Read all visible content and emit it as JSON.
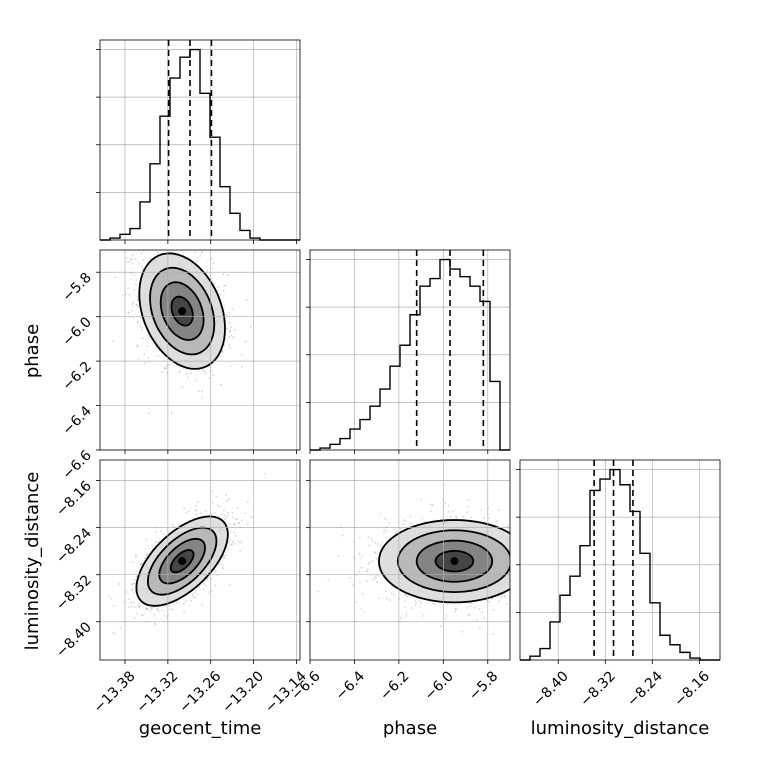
{
  "chart_data": {
    "type": "corner",
    "parameters": [
      "geocent_time",
      "phase",
      "luminosity_distance"
    ],
    "labels": {
      "geocent_time": "geocent_time",
      "phase": "phase",
      "luminosity_distance": "luminosity_distance"
    },
    "axis_ranges": {
      "geocent_time": [
        -13.415,
        -13.135
      ],
      "phase": [
        -6.6,
        -5.7
      ],
      "luminosity_distance": [
        -8.465,
        -8.125
      ]
    },
    "ticks": {
      "geocent_time": [
        -13.38,
        -13.32,
        -13.26,
        -13.2,
        -13.14
      ],
      "phase": [
        -6.6,
        -6.4,
        -6.2,
        -6.0,
        -5.8
      ],
      "luminosity_distance": [
        -8.4,
        -8.32,
        -8.24,
        -8.16
      ]
    },
    "tick_labels": {
      "geocent_time": [
        "−13.38",
        "−13.32",
        "−13.26",
        "−13.20",
        "−13.14"
      ],
      "phase": [
        "−6.6",
        "−6.4",
        "−6.2",
        "−6.0",
        "−5.8"
      ],
      "luminosity_distance": [
        "−8.40",
        "−8.32",
        "−8.24",
        "−8.16"
      ]
    },
    "quantiles": {
      "geocent_time": [
        -13.319,
        -13.289,
        -13.259
      ],
      "phase": [
        -6.12,
        -5.97,
        -5.82
      ],
      "luminosity_distance": [
        -8.339,
        -8.306,
        -8.273
      ]
    },
    "histograms": {
      "geocent_time": {
        "edges": [
          -13.415,
          -13.401,
          -13.387,
          -13.373,
          -13.359,
          -13.345,
          -13.331,
          -13.317,
          -13.303,
          -13.289,
          -13.275,
          -13.261,
          -13.247,
          -13.233,
          -13.219,
          -13.205,
          -13.191,
          -13.177,
          -13.163,
          -13.149,
          -13.135
        ],
        "counts": [
          0.0,
          0.01,
          0.03,
          0.06,
          0.2,
          0.4,
          0.65,
          0.85,
          0.96,
          1.0,
          0.77,
          0.54,
          0.28,
          0.14,
          0.05,
          0.01,
          0.0,
          0.0,
          0.0,
          0.0
        ]
      },
      "phase": {
        "edges": [
          -6.6,
          -6.555,
          -6.51,
          -6.465,
          -6.42,
          -6.375,
          -6.33,
          -6.285,
          -6.24,
          -6.195,
          -6.15,
          -6.105,
          -6.06,
          -6.015,
          -5.97,
          -5.925,
          -5.88,
          -5.835,
          -5.79,
          -5.745,
          -5.7
        ],
        "counts": [
          0.0,
          0.01,
          0.03,
          0.06,
          0.11,
          0.16,
          0.23,
          0.32,
          0.44,
          0.55,
          0.71,
          0.86,
          0.9,
          1.0,
          0.95,
          0.91,
          0.86,
          0.78,
          0.36,
          0.0
        ]
      },
      "luminosity_distance": {
        "edges": [
          -8.465,
          -8.448,
          -8.431,
          -8.414,
          -8.397,
          -8.38,
          -8.363,
          -8.346,
          -8.329,
          -8.312,
          -8.295,
          -8.278,
          -8.261,
          -8.244,
          -8.227,
          -8.21,
          -8.193,
          -8.176,
          -8.159,
          -8.142,
          -8.125
        ],
        "counts": [
          0.0,
          0.02,
          0.06,
          0.2,
          0.34,
          0.44,
          0.6,
          0.89,
          0.95,
          1.0,
          0.92,
          0.78,
          0.56,
          0.3,
          0.13,
          0.08,
          0.04,
          0.01,
          0.0,
          0.0
        ]
      }
    },
    "pairs": [
      {
        "x": "geocent_time",
        "y": "phase",
        "center": [
          -13.3,
          -5.975
        ],
        "sigma": [
          0.03,
          0.13
        ],
        "correlation": -0.3
      },
      {
        "x": "geocent_time",
        "y": "luminosity_distance",
        "center": [
          -13.3,
          -8.297
        ],
        "sigma": [
          0.032,
          0.038
        ],
        "correlation": 0.6
      },
      {
        "x": "phase",
        "y": "luminosity_distance",
        "center": [
          -5.95,
          -8.297
        ],
        "sigma": [
          0.17,
          0.035
        ],
        "correlation": 0.0
      }
    ],
    "contour_levels_sigma": [
      0.5,
      1.0,
      1.5,
      2.0
    ],
    "grid": true,
    "legend": "none"
  }
}
